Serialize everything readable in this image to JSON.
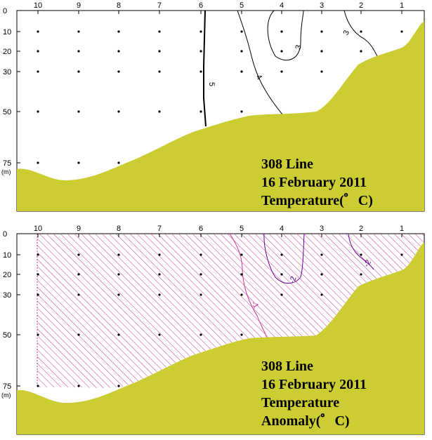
{
  "colors": {
    "seabed": "#cccc33",
    "contour": "#000000",
    "anomaly_hatch": "#cc3399",
    "anomaly_contour": "#660099"
  },
  "panels": [
    {
      "id": "temperature",
      "station_labels": [
        "10",
        "9",
        "8",
        "7",
        "6",
        "5",
        "4",
        "3",
        "2",
        "1"
      ],
      "depth_labels": [
        "0",
        "10",
        "20",
        "30",
        "50",
        "75"
      ],
      "depth_unit": "(m)",
      "contour_labels": [
        "5",
        "4",
        "3",
        "3"
      ],
      "caption": [
        "308 Line",
        "16 February 2011",
        "Temperature(゜C)"
      ]
    },
    {
      "id": "anomaly",
      "station_labels": [
        "10",
        "9",
        "8",
        "7",
        "6",
        "5",
        "4",
        "3",
        "2",
        "1"
      ],
      "depth_labels": [
        "0",
        "10",
        "20",
        "30",
        "50",
        "75"
      ],
      "depth_unit": "(m)",
      "contour_labels": [
        "-1",
        "-2",
        "-2"
      ],
      "caption": [
        "308 Line",
        "16 February 2011",
        "Temperature",
        "Anomaly(゜C)"
      ]
    }
  ]
}
